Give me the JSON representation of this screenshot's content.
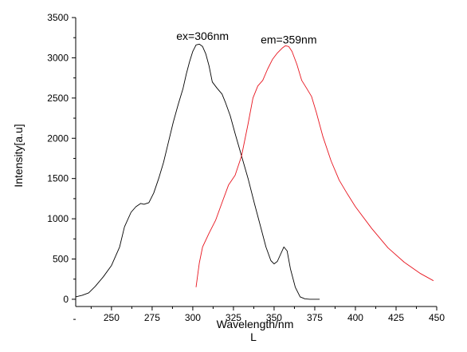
{
  "chart_data": {
    "type": "line",
    "title": "",
    "xlabel": "Wavelength/nm",
    "ylabel": "Intensity[a.u]",
    "below_xlabel": "L",
    "xlim": [
      228,
      450
    ],
    "ylim": [
      -90,
      3500
    ],
    "x_ticks": [
      250,
      275,
      300,
      325,
      350,
      375,
      400,
      425,
      450
    ],
    "y_ticks": [
      0,
      500,
      1000,
      1500,
      2000,
      2500,
      3000,
      3500
    ],
    "grid": false,
    "legend": "none",
    "annotations": [
      {
        "text": "ex=306nm",
        "x": 306,
        "y": 3220
      },
      {
        "text": "em=359nm",
        "x": 359,
        "y": 3180
      }
    ],
    "series": [
      {
        "color": "#000000",
        "x": [
          228,
          232,
          236,
          240,
          245,
          250,
          255,
          258,
          262,
          265,
          268,
          270,
          273,
          276,
          279,
          282,
          285,
          288,
          291,
          294,
          296,
          298,
          300,
          302,
          304,
          306,
          308,
          310,
          312,
          315,
          318,
          320,
          323,
          326,
          330,
          334,
          338,
          342,
          345,
          348,
          350,
          352,
          354,
          356,
          358,
          360,
          363,
          366,
          369,
          372,
          378
        ],
        "values": [
          30,
          50,
          80,
          160,
          280,
          420,
          650,
          900,
          1080,
          1150,
          1190,
          1180,
          1200,
          1320,
          1500,
          1700,
          1950,
          2200,
          2420,
          2620,
          2800,
          2950,
          3080,
          3160,
          3170,
          3140,
          3050,
          2900,
          2700,
          2620,
          2550,
          2450,
          2280,
          2060,
          1780,
          1500,
          1180,
          880,
          650,
          480,
          440,
          470,
          560,
          650,
          600,
          380,
          150,
          30,
          5,
          0,
          0
        ]
      },
      {
        "color": "#e8141e",
        "x": [
          302,
          304,
          306,
          310,
          314,
          318,
          322,
          326,
          330,
          334,
          337,
          340,
          343,
          346,
          349,
          352,
          355,
          357,
          359,
          361,
          364,
          367,
          370,
          373,
          376,
          380,
          385,
          390,
          395,
          400,
          410,
          420,
          430,
          440,
          448
        ],
        "values": [
          150,
          450,
          650,
          820,
          980,
          1200,
          1420,
          1540,
          1780,
          2180,
          2500,
          2650,
          2720,
          2860,
          2980,
          3060,
          3120,
          3150,
          3140,
          3080,
          2920,
          2720,
          2620,
          2520,
          2320,
          2020,
          1720,
          1480,
          1310,
          1150,
          880,
          640,
          460,
          320,
          230
        ]
      }
    ]
  }
}
